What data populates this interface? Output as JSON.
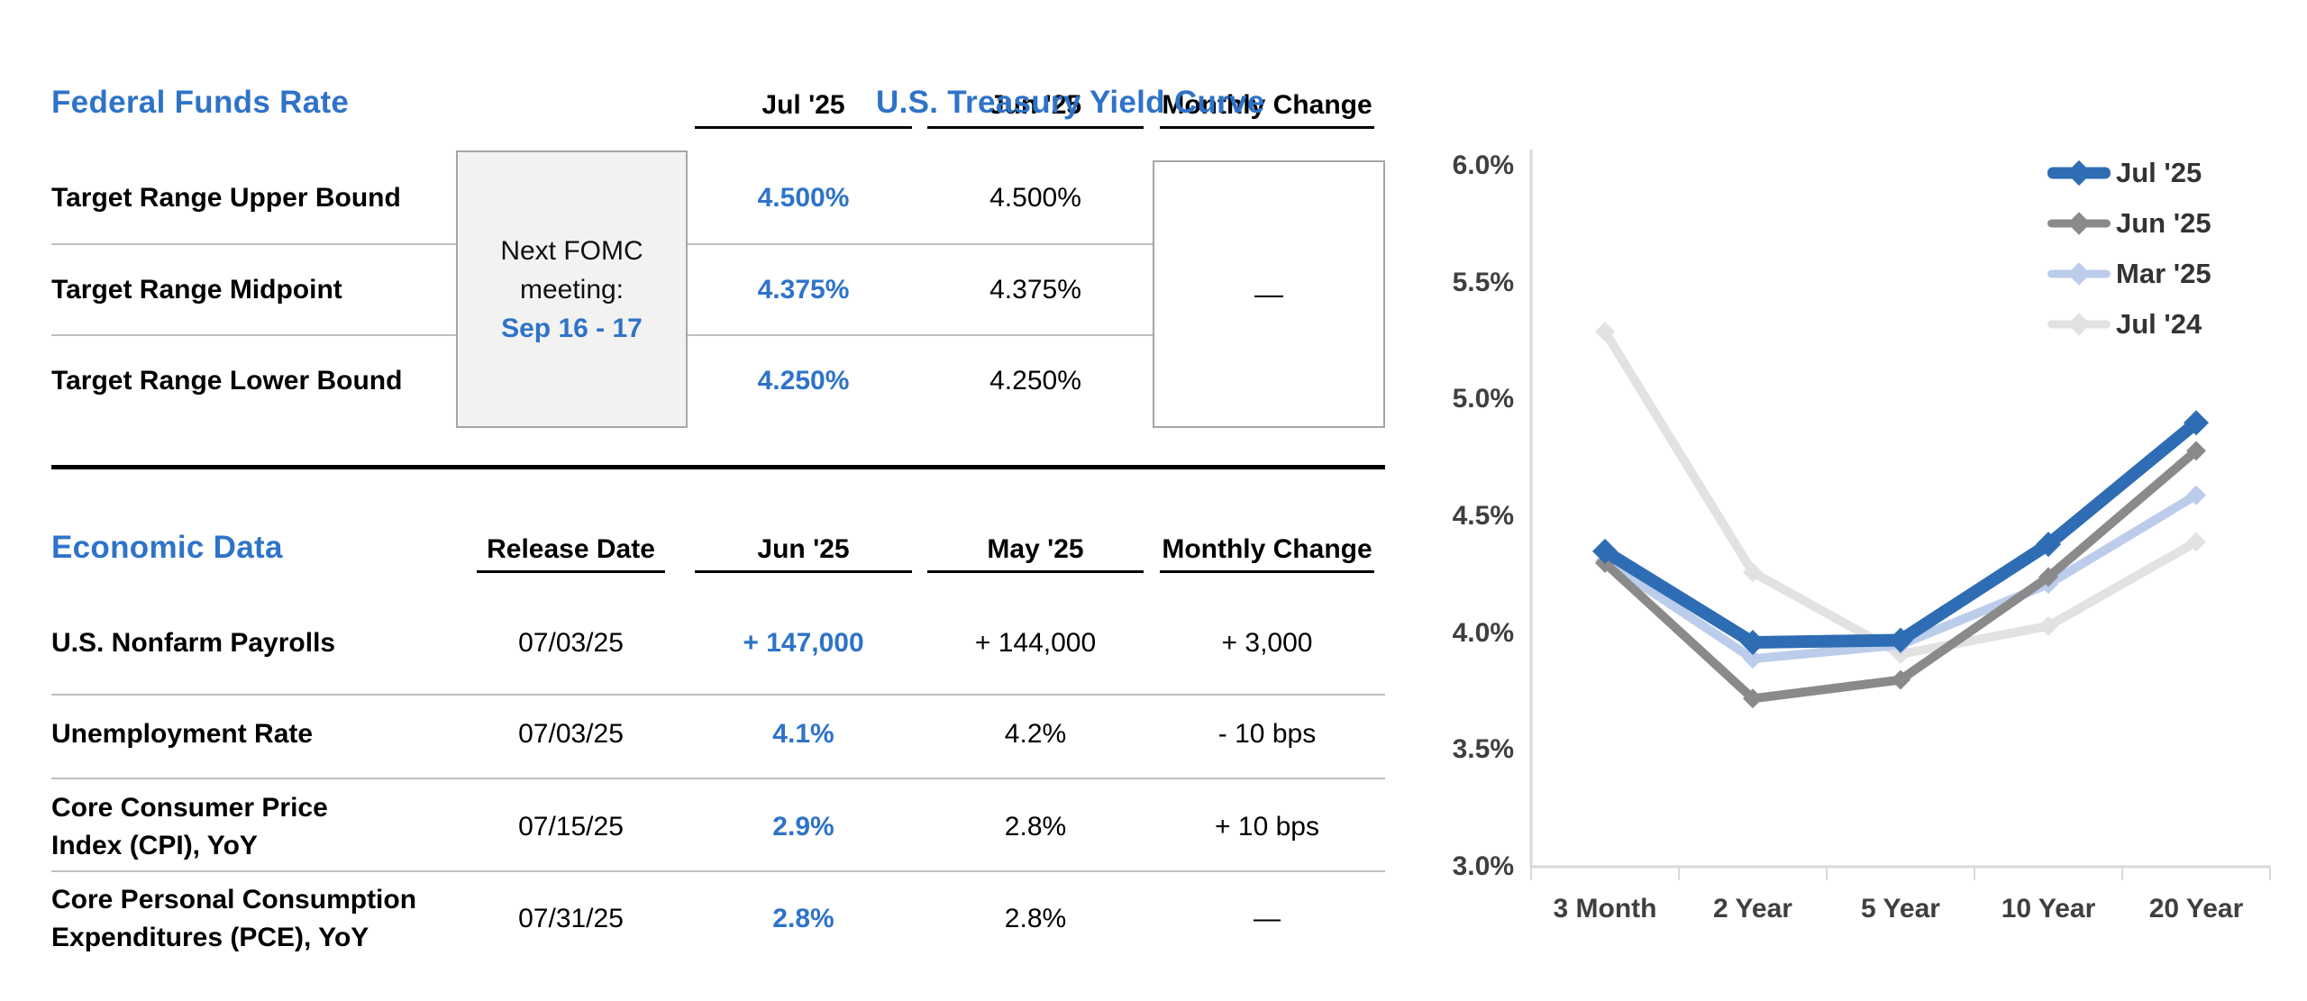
{
  "ffr": {
    "title": "Federal Funds Rate",
    "columns": [
      "Jul '25",
      "Jun '25",
      "Monthly Change"
    ],
    "rows": [
      {
        "label": "Target Range Upper Bound",
        "jul25": "4.500%",
        "jun25": "4.500%"
      },
      {
        "label": "Target Range Midpoint",
        "jul25": "4.375%",
        "jun25": "4.375%"
      },
      {
        "label": "Target Range Lower Bound",
        "jul25": "4.250%",
        "jun25": "4.250%"
      }
    ],
    "monthly_change": "—",
    "fomc_note": {
      "line1": "Next FOMC",
      "line2": "meeting:",
      "date": "Sep 16 - 17"
    }
  },
  "econ": {
    "title": "Economic Data",
    "columns": [
      "Release Date",
      "Jun '25",
      "May '25",
      "Monthly Change"
    ],
    "rows": [
      {
        "label1": "U.S. Nonfarm Payrolls",
        "label2": "",
        "release": "07/03/25",
        "current": "+ 147,000",
        "previous": "+ 144,000",
        "change": "+ 3,000"
      },
      {
        "label1": "Unemployment Rate",
        "label2": "",
        "release": "07/03/25",
        "current": "4.1%",
        "previous": "4.2%",
        "change": "- 10 bps"
      },
      {
        "label1": "Core Consumer Price",
        "label2": "Index (CPI), YoY",
        "release": "07/15/25",
        "current": "2.9%",
        "previous": "2.8%",
        "change": "+ 10 bps"
      },
      {
        "label1": "Core Personal Consumption",
        "label2": "Expenditures (PCE), YoY",
        "release": "07/31/25",
        "current": "2.8%",
        "previous": "2.8%",
        "change": "—"
      }
    ]
  },
  "chart_data": {
    "type": "line",
    "title": "U.S. Treasury Yield Curve",
    "categories": [
      "3 Month",
      "2 Year",
      "5 Year",
      "10 Year",
      "20 Year"
    ],
    "series": [
      {
        "name": "Jul '25",
        "color": "#2E6DB4",
        "values": [
          4.35,
          3.96,
          3.97,
          4.38,
          4.9
        ]
      },
      {
        "name": "Jun '25",
        "color": "#8A8A8A",
        "values": [
          4.3,
          3.72,
          3.8,
          4.24,
          4.78
        ]
      },
      {
        "name": "Mar '25",
        "color": "#BCCCEB",
        "values": [
          4.31,
          3.89,
          3.95,
          4.21,
          4.59
        ]
      },
      {
        "name": "Jul '24",
        "color": "#E2E2E2",
        "values": [
          5.29,
          4.26,
          3.91,
          4.03,
          4.39
        ]
      }
    ],
    "ylim": [
      3.0,
      6.0
    ],
    "ytick_labels": [
      "6.0%",
      "5.5%",
      "5.0%",
      "4.5%",
      "4.0%",
      "3.5%",
      "3.0%"
    ],
    "xlabel": "",
    "ylabel": "",
    "grid": false,
    "marker": "diamond",
    "legend_position": "top-right"
  },
  "colors": {
    "accent_blue": "#2E73C8",
    "axis_line": "#D9D9D9",
    "axis_label": "#3F3F3F",
    "box_border": "#A6A6A6",
    "fomc_fill": "#F2F2F2",
    "separator": "#BFBFBF"
  }
}
